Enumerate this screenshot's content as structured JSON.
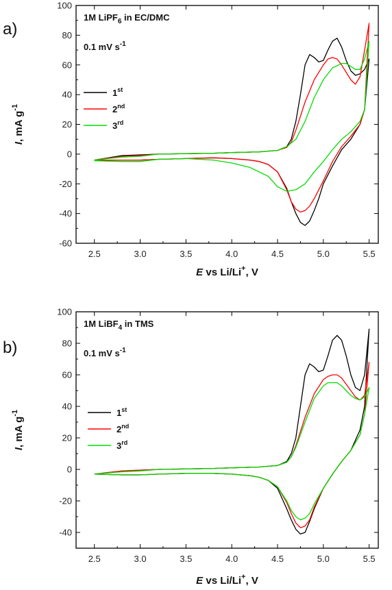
{
  "chart_data": [
    {
      "type": "line",
      "panel_label": "a)",
      "electrolyte": {
        "pre": "1M  LiPF",
        "sub": "6",
        "post": " in EC/DMC"
      },
      "scan_rate": {
        "pre": "0.1 mV s",
        "sup": "-1"
      },
      "xlabel": {
        "italic": "E",
        "pre": " vs  Li/Li",
        "sup": "+",
        "post": ", V"
      },
      "ylabel": {
        "italic": "I",
        "rest": ", mA g",
        "sup": "-1"
      },
      "xlim": [
        2.3,
        5.6
      ],
      "ylim": [
        -60,
        100
      ],
      "xticks": [
        2.5,
        3.0,
        3.5,
        4.0,
        4.5,
        5.0,
        5.5
      ],
      "yticks": [
        -60,
        -40,
        -20,
        0,
        20,
        40,
        60,
        80,
        100
      ],
      "legend_position": "left",
      "series": [
        {
          "name": "1",
          "sup": "st",
          "color": "#000000",
          "x": [
            2.5,
            2.8,
            3.0,
            3.2,
            3.5,
            3.8,
            4.0,
            4.3,
            4.5,
            4.6,
            4.65,
            4.7,
            4.75,
            4.8,
            4.85,
            4.9,
            4.95,
            5.0,
            5.05,
            5.1,
            5.15,
            5.2,
            5.25,
            5.3,
            5.35,
            5.4,
            5.45,
            5.5,
            5.45,
            5.4,
            5.3,
            5.2,
            5.1,
            5.0,
            4.95,
            4.9,
            4.85,
            4.8,
            4.75,
            4.7,
            4.65,
            4.6,
            4.5,
            4.4,
            4.3,
            4.2,
            4.0,
            3.8,
            3.5,
            3.2,
            3.0,
            2.8,
            2.5
          ],
          "y": [
            -4,
            -1,
            -0.5,
            0,
            0.3,
            0.6,
            1,
            1.5,
            2.5,
            5,
            10,
            22,
            40,
            60,
            67,
            65,
            62,
            63,
            70,
            76,
            78,
            72,
            63,
            56,
            53,
            54,
            57,
            64,
            30,
            20,
            10,
            3,
            -8,
            -20,
            -30,
            -38,
            -45,
            -48,
            -46,
            -40,
            -32,
            -23,
            -12,
            -7,
            -5,
            -4,
            -3,
            -2.5,
            -3,
            -3.5,
            -4,
            -4,
            -4
          ]
        },
        {
          "name": "2",
          "sup": "nd",
          "color": "#ff0000",
          "x": [
            2.5,
            2.8,
            3.0,
            3.2,
            3.5,
            3.8,
            4.0,
            4.3,
            4.5,
            4.6,
            4.65,
            4.7,
            4.8,
            4.9,
            5.0,
            5.05,
            5.1,
            5.15,
            5.2,
            5.25,
            5.3,
            5.35,
            5.4,
            5.45,
            5.5,
            5.45,
            5.4,
            5.3,
            5.2,
            5.1,
            5.0,
            4.9,
            4.85,
            4.8,
            4.75,
            4.7,
            4.65,
            4.6,
            4.5,
            4.4,
            4.3,
            4.2,
            4.0,
            3.8,
            3.5,
            3.2,
            3.0,
            2.8,
            2.5
          ],
          "y": [
            -4,
            -1.5,
            -1,
            0,
            0.3,
            0.6,
            1,
            1.5,
            2.5,
            4.5,
            8,
            16,
            35,
            50,
            60,
            64,
            65,
            64,
            60,
            55,
            50,
            47,
            52,
            70,
            88,
            30,
            20,
            12,
            5,
            -5,
            -18,
            -30,
            -35,
            -38,
            -39,
            -37,
            -32,
            -24,
            -12,
            -7,
            -5,
            -4,
            -3,
            -2.5,
            -3,
            -3.5,
            -4,
            -4,
            -4
          ]
        },
        {
          "name": "3",
          "sup": "rd",
          "color": "#00dd00",
          "x": [
            2.5,
            2.8,
            3.0,
            3.2,
            3.5,
            3.8,
            4.0,
            4.3,
            4.5,
            4.6,
            4.7,
            4.8,
            4.9,
            5.0,
            5.1,
            5.2,
            5.25,
            5.3,
            5.35,
            5.4,
            5.45,
            5.5,
            5.45,
            5.4,
            5.3,
            5.2,
            5.1,
            5.0,
            4.9,
            4.8,
            4.7,
            4.6,
            4.5,
            4.4,
            4.2,
            4.0,
            3.8,
            3.5,
            3.2,
            3.0,
            2.8,
            2.5
          ],
          "y": [
            -4,
            -2,
            -1.5,
            0,
            0.3,
            0.6,
            1,
            1.5,
            2.5,
            5,
            10,
            22,
            38,
            50,
            58,
            61,
            61,
            59,
            57,
            57,
            64,
            76,
            30,
            22,
            15,
            10,
            3,
            -5,
            -12,
            -20,
            -24,
            -25,
            -22,
            -15,
            -9,
            -6,
            -4,
            -3,
            -3.5,
            -5,
            -5,
            -4.5
          ]
        }
      ]
    },
    {
      "type": "line",
      "panel_label": "b)",
      "electrolyte": {
        "pre": "1M  LiBF",
        "sub": "4",
        "post": " in TMS"
      },
      "scan_rate": {
        "pre": "0.1 mV s",
        "sup": "-1"
      },
      "xlabel": {
        "italic": "E",
        "pre": " vs  Li/Li",
        "sup": "+",
        "post": ", V"
      },
      "ylabel": {
        "italic": "I",
        "rest": ", mA g",
        "sup": "-1"
      },
      "xlim": [
        2.3,
        5.6
      ],
      "ylim": [
        -50,
        100
      ],
      "xticks": [
        2.5,
        3.0,
        3.5,
        4.0,
        4.5,
        5.0,
        5.5
      ],
      "yticks": [
        -40,
        -20,
        0,
        20,
        40,
        60,
        80,
        100
      ],
      "legend_position": "left",
      "series": [
        {
          "name": "1",
          "sup": "st",
          "color": "#000000",
          "x": [
            2.5,
            2.8,
            3.0,
            3.2,
            3.5,
            3.8,
            4.0,
            4.3,
            4.5,
            4.6,
            4.65,
            4.7,
            4.75,
            4.8,
            4.85,
            4.9,
            4.95,
            5.0,
            5.05,
            5.1,
            5.15,
            5.2,
            5.25,
            5.3,
            5.35,
            5.4,
            5.45,
            5.5,
            5.45,
            5.4,
            5.3,
            5.2,
            5.1,
            5.0,
            4.9,
            4.85,
            4.8,
            4.75,
            4.7,
            4.65,
            4.6,
            4.5,
            4.4,
            4.3,
            4.2,
            4.0,
            3.8,
            3.5,
            3.2,
            3.0,
            2.8,
            2.5
          ],
          "y": [
            -3,
            -1,
            -0.5,
            0,
            0.3,
            0.6,
            1,
            1.5,
            2.5,
            5,
            10,
            20,
            40,
            60,
            67,
            65,
            62,
            63,
            72,
            82,
            85,
            82,
            72,
            60,
            52,
            50,
            60,
            89,
            40,
            25,
            12,
            5,
            -3,
            -12,
            -25,
            -33,
            -40,
            -41,
            -38,
            -32,
            -25,
            -12,
            -7,
            -5,
            -4,
            -3,
            -2.5,
            -2.5,
            -3,
            -3.5,
            -3.5,
            -3
          ]
        },
        {
          "name": "2",
          "sup": "nd",
          "color": "#ff0000",
          "x": [
            2.5,
            2.8,
            3.0,
            3.2,
            3.5,
            3.8,
            4.0,
            4.3,
            4.5,
            4.6,
            4.65,
            4.7,
            4.8,
            4.9,
            5.0,
            5.05,
            5.1,
            5.15,
            5.2,
            5.25,
            5.3,
            5.35,
            5.4,
            5.45,
            5.5,
            5.45,
            5.4,
            5.3,
            5.2,
            5.1,
            5.0,
            4.9,
            4.85,
            4.8,
            4.75,
            4.7,
            4.65,
            4.6,
            4.5,
            4.4,
            4.3,
            4.2,
            4.0,
            3.8,
            3.5,
            3.2,
            3.0,
            2.8,
            2.5
          ],
          "y": [
            -3,
            -1,
            -0.5,
            0,
            0.3,
            0.6,
            1,
            1.5,
            2.5,
            4.5,
            8,
            15,
            33,
            48,
            57,
            59,
            60,
            60,
            58,
            54,
            50,
            46,
            44,
            47,
            68,
            35,
            22,
            12,
            5,
            -3,
            -12,
            -24,
            -32,
            -36,
            -37,
            -34,
            -28,
            -21,
            -11,
            -7,
            -5,
            -4,
            -3,
            -2.5,
            -2.5,
            -3,
            -3.5,
            -3.5,
            -3
          ]
        },
        {
          "name": "3",
          "sup": "rd",
          "color": "#00dd00",
          "x": [
            2.5,
            2.8,
            3.0,
            3.2,
            3.5,
            3.8,
            4.0,
            4.3,
            4.5,
            4.6,
            4.65,
            4.7,
            4.8,
            4.9,
            5.0,
            5.05,
            5.1,
            5.15,
            5.2,
            5.25,
            5.3,
            5.35,
            5.4,
            5.45,
            5.5,
            5.45,
            5.4,
            5.3,
            5.2,
            5.1,
            5.0,
            4.9,
            4.85,
            4.8,
            4.75,
            4.7,
            4.65,
            4.6,
            4.5,
            4.4,
            4.3,
            4.2,
            4.0,
            3.8,
            3.5,
            3.2,
            3.0,
            2.8,
            2.5
          ],
          "y": [
            -3,
            -1.5,
            -1,
            0,
            0.3,
            0.6,
            1,
            1.5,
            2.5,
            4.5,
            8,
            14,
            30,
            45,
            53,
            55,
            55,
            55,
            53,
            50,
            47,
            45,
            44,
            46,
            52,
            35,
            22,
            12,
            5,
            -3,
            -12,
            -22,
            -28,
            -31,
            -32,
            -30,
            -26,
            -20,
            -11,
            -7,
            -5,
            -4,
            -3,
            -2.5,
            -2.5,
            -3,
            -3.5,
            -3.5,
            -3
          ]
        }
      ]
    }
  ]
}
